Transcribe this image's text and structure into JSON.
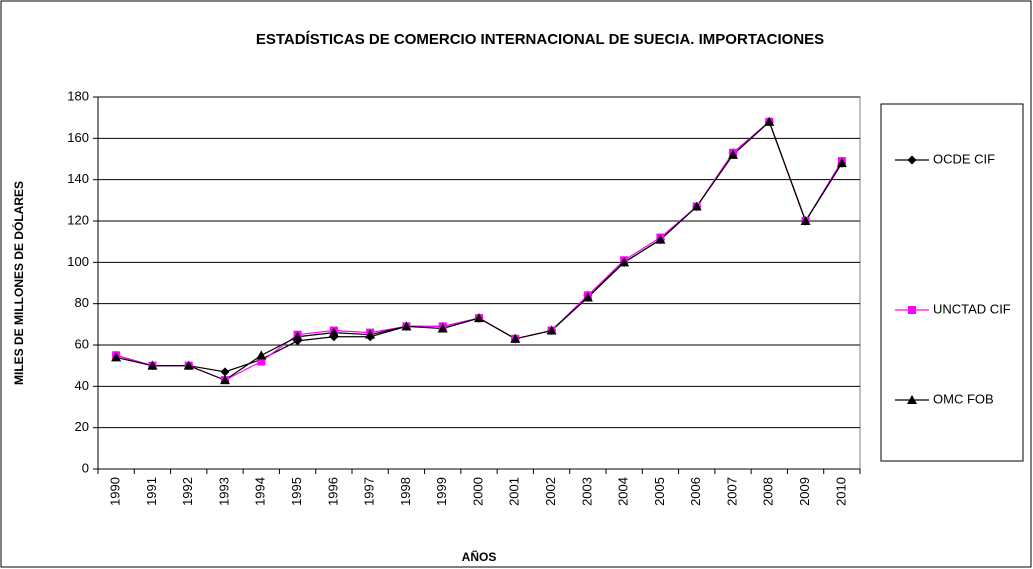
{
  "chart_data": {
    "type": "line",
    "title": "ESTADÍSTICAS DE COMERCIO INTERNACIONAL DE SUECIA. IMPORTACIONES",
    "x_label": "AÑOS",
    "y_label": "MILES DE MILLONES DE DÓLARES",
    "categories": [
      "1990",
      "1991",
      "1992",
      "1993",
      "1994",
      "1995",
      "1996",
      "1997",
      "1998",
      "1999",
      "2000",
      "2001",
      "2002",
      "2003",
      "2004",
      "2005",
      "2006",
      "2007",
      "2008",
      "2009",
      "2010"
    ],
    "series": [
      {
        "name": "OCDE CIF",
        "color": "#000000",
        "marker": "diamond",
        "values": [
          55,
          50,
          50,
          47,
          53,
          62,
          64,
          64,
          69,
          69,
          73,
          63,
          67,
          84,
          100,
          111,
          127,
          153,
          168,
          120,
          148
        ]
      },
      {
        "name": "UNCTAD CIF",
        "color": "#ff00ff",
        "marker": "square",
        "values": [
          55,
          50,
          50,
          43,
          52,
          65,
          67,
          66,
          69,
          69,
          73,
          63,
          67,
          84,
          101,
          112,
          127,
          153,
          168,
          120,
          149
        ]
      },
      {
        "name": "OMC FOB",
        "color": "#000000",
        "marker": "triangle",
        "values": [
          54,
          50,
          50,
          43,
          55,
          64,
          66,
          65,
          69,
          68,
          73,
          63,
          67,
          83,
          100,
          111,
          127,
          152,
          168,
          120,
          148
        ]
      }
    ],
    "ylim": [
      0,
      180
    ],
    "yticks": [
      0,
      20,
      40,
      60,
      80,
      100,
      120,
      140,
      160,
      180
    ],
    "grid": true,
    "legend": "right"
  }
}
